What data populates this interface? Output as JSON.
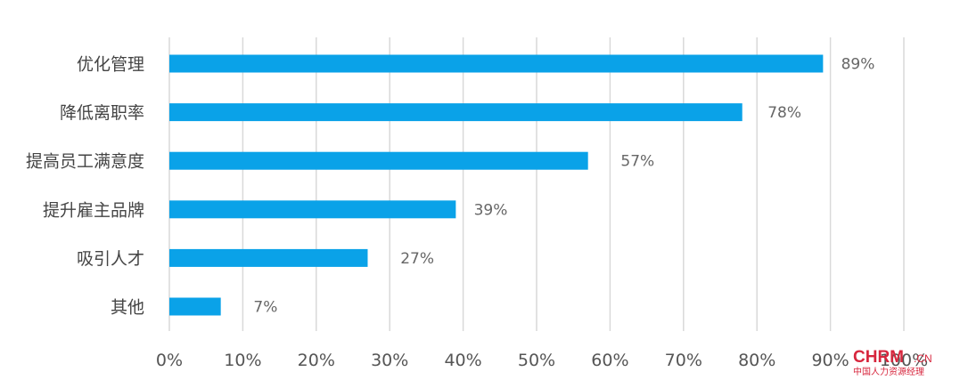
{
  "chart_data": {
    "type": "bar",
    "orientation": "horizontal",
    "categories": [
      "优化管理",
      "降低离职率",
      "提高员工满意度",
      "提升雇主品牌",
      "吸引人才",
      "其他"
    ],
    "values": [
      89,
      78,
      57,
      39,
      27,
      7
    ],
    "data_labels": [
      "89%",
      "78%",
      "57%",
      "39%",
      "27%",
      "7%"
    ],
    "x_ticks": [
      "0%",
      "10%",
      "20%",
      "30%",
      "40%",
      "50%",
      "60%",
      "70%",
      "80%",
      "90%",
      "100%"
    ],
    "xlim": [
      0,
      100
    ],
    "grid": "vertical",
    "legend": "none",
    "bar_color": "#0aa2e8"
  },
  "watermark": {
    "logo_text": "CHRM",
    "suffix": ".CN",
    "subtitle": "中国人力资源经理"
  }
}
